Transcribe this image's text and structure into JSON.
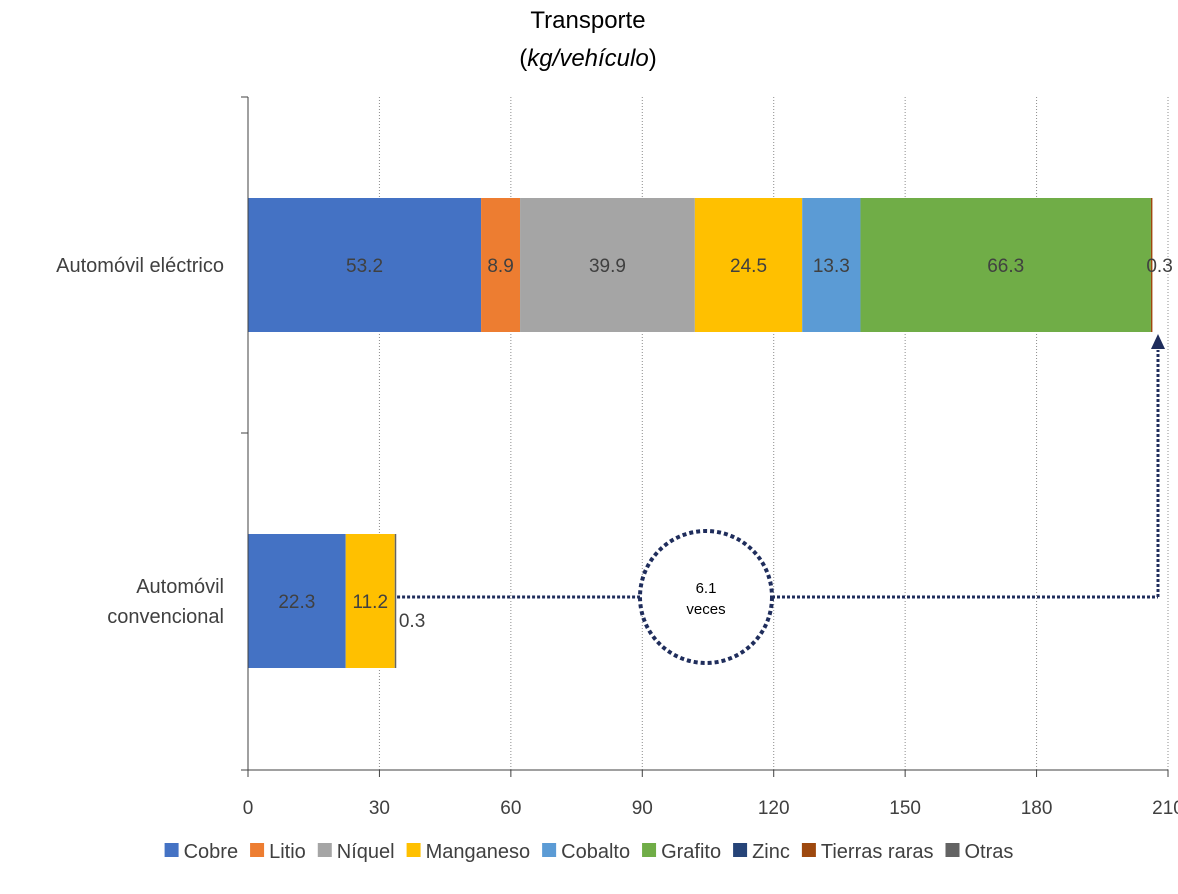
{
  "chart_data": {
    "type": "bar",
    "orientation": "horizontal",
    "stacked": true,
    "title": "Transporte",
    "subtitle": "(kg/vehículo)",
    "categories": [
      "Automóvil eléctrico",
      "Automóvil convencional"
    ],
    "xlim": [
      0,
      210
    ],
    "xticks": [
      0,
      30,
      60,
      90,
      120,
      150,
      180,
      210
    ],
    "x_grid": true,
    "legend_position": "bottom",
    "series": [
      {
        "name": "Cobre",
        "color": "#4472C4",
        "values": [
          53.2,
          22.3
        ]
      },
      {
        "name": "Litio",
        "color": "#ED7D31",
        "values": [
          8.9,
          0
        ]
      },
      {
        "name": "Níquel",
        "color": "#A5A5A5",
        "values": [
          39.9,
          0
        ]
      },
      {
        "name": "Manganeso",
        "color": "#FFC000",
        "values": [
          24.5,
          11.2
        ]
      },
      {
        "name": "Cobalto",
        "color": "#5B9BD5",
        "values": [
          13.3,
          0
        ]
      },
      {
        "name": "Grafito",
        "color": "#70AD47",
        "values": [
          66.3,
          0
        ]
      },
      {
        "name": "Zinc",
        "color": "#264478",
        "values": [
          0,
          0
        ]
      },
      {
        "name": "Tierras raras",
        "color": "#9E480E",
        "values": [
          0.3,
          0
        ]
      },
      {
        "name": "Otras",
        "color": "#636363",
        "values": [
          0,
          0.3
        ]
      }
    ],
    "annotation": {
      "lines": [
        "6.1",
        "veces"
      ],
      "color": "#1F2D5C"
    }
  }
}
